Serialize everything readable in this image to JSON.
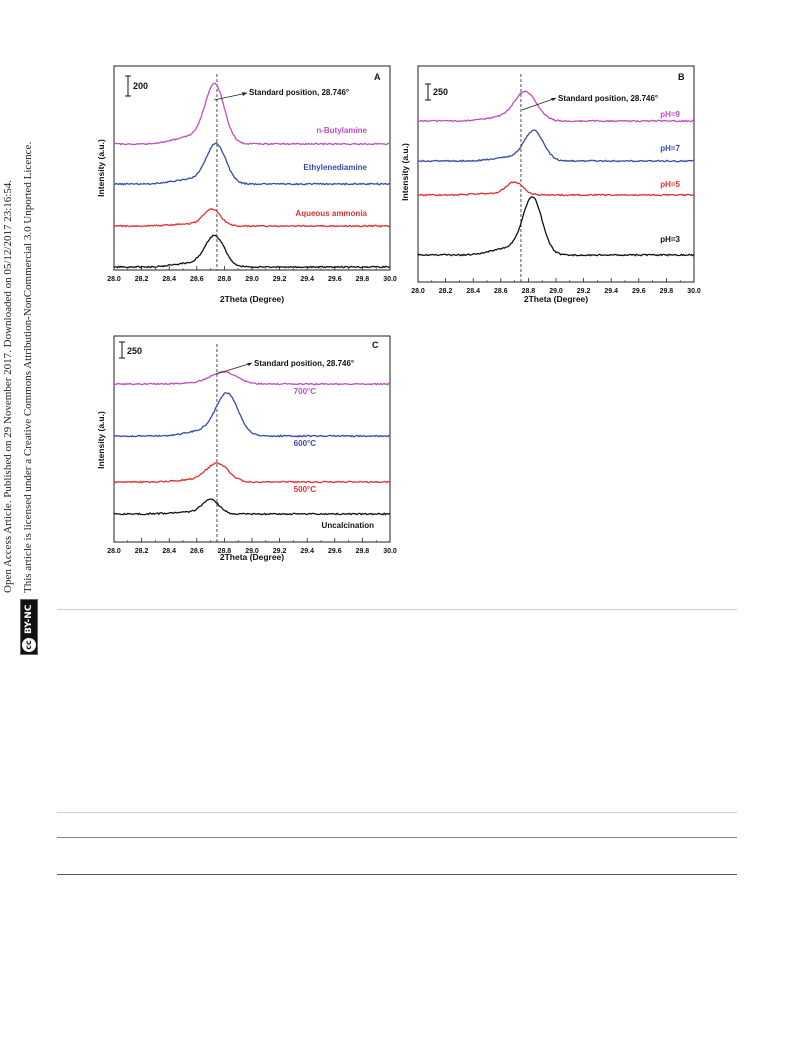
{
  "sidebar": {
    "line1": "Open Access Article. Published on 29 November 2017. Downloaded on 05/12/2017 23:16:54.",
    "line2": "This article is licensed under a Creative Commons Attribution-NonCommercial 3.0 Unported Licence.",
    "license_icon": "cc-by-nc-badge",
    "license_badge_cc": "cc",
    "license_badge_text": "BY-NC"
  },
  "figure": {
    "panels": [
      {
        "letter": "A",
        "scale_bar": "200",
        "annotation": "Standard position, 28.746°"
      },
      {
        "letter": "B",
        "scale_bar": "250",
        "annotation": "Standard position, 28.746°"
      },
      {
        "letter": "C",
        "scale_bar": "250",
        "annotation": "Standard position, 28.746°"
      }
    ]
  },
  "chart_data": [
    {
      "type": "line",
      "panel": "A",
      "xlabel": "2Theta (Degree)",
      "ylabel": "Intensity (a.u.)",
      "xlim": [
        28.0,
        30.0
      ],
      "xticks": [
        "28.0",
        "28.2",
        "28.4",
        "28.6",
        "28.8",
        "29.0",
        "29.2",
        "29.4",
        "29.6",
        "29.8",
        "30.0"
      ],
      "reference_line_x": 28.746,
      "series": [
        {
          "name": "n-Butylamine",
          "color": "#c04fc0",
          "peak_x": 28.73,
          "peak_height": 1.0,
          "width": 0.07
        },
        {
          "name": "Ethylenediamine",
          "color": "#3a4aa8",
          "peak_x": 28.74,
          "peak_height": 0.85,
          "width": 0.07
        },
        {
          "name": "Aqueous ammonia",
          "color": "#e03030",
          "peak_x": 28.71,
          "peak_height": 0.55,
          "width": 0.06
        },
        {
          "name": "",
          "color": "#111111",
          "peak_x": 28.73,
          "peak_height": 0.8,
          "width": 0.07
        }
      ]
    },
    {
      "type": "line",
      "panel": "B",
      "xlabel": "2Theta (Degree)",
      "ylabel": "Intensity (a.u.)",
      "xlim": [
        28.0,
        30.0
      ],
      "xticks": [
        "28.0",
        "28.2",
        "28.4",
        "28.6",
        "28.8",
        "29.0",
        "29.2",
        "29.4",
        "29.6",
        "29.8",
        "30.0"
      ],
      "reference_line_x": 28.746,
      "series": [
        {
          "name": "pH=9",
          "color": "#c04fc0",
          "peak_x": 28.78,
          "peak_height": 0.65,
          "width": 0.08
        },
        {
          "name": "pH=7",
          "color": "#3a4aa8",
          "peak_x": 28.84,
          "peak_height": 0.7,
          "width": 0.07
        },
        {
          "name": "pH=5",
          "color": "#e03030",
          "peak_x": 28.7,
          "peak_height": 0.45,
          "width": 0.06
        },
        {
          "name": "pH=3",
          "color": "#111111",
          "peak_x": 28.83,
          "peak_height": 1.0,
          "width": 0.07
        }
      ]
    },
    {
      "type": "line",
      "panel": "C",
      "xlabel": "2Theta (Degree)",
      "ylabel": "Intensity (a.u.)",
      "xlim": [
        28.0,
        30.0
      ],
      "xticks": [
        "28.0",
        "28.2",
        "28.4",
        "28.6",
        "28.8",
        "29.0",
        "29.2",
        "29.4",
        "29.6",
        "29.8",
        "30.0"
      ],
      "reference_line_x": 28.746,
      "series": [
        {
          "name": "700°C",
          "color": "#c04fc0",
          "peak_x": 28.8,
          "peak_height": 0.45,
          "width": 0.09
        },
        {
          "name": "600°C",
          "color": "#3a4aa8",
          "peak_x": 28.82,
          "peak_height": 0.9,
          "width": 0.08
        },
        {
          "name": "500°C",
          "color": "#e03030",
          "peak_x": 28.75,
          "peak_height": 0.6,
          "width": 0.08
        },
        {
          "name": "Uncalcination",
          "color": "#111111",
          "peak_x": 28.7,
          "peak_height": 0.55,
          "width": 0.06
        }
      ]
    }
  ]
}
